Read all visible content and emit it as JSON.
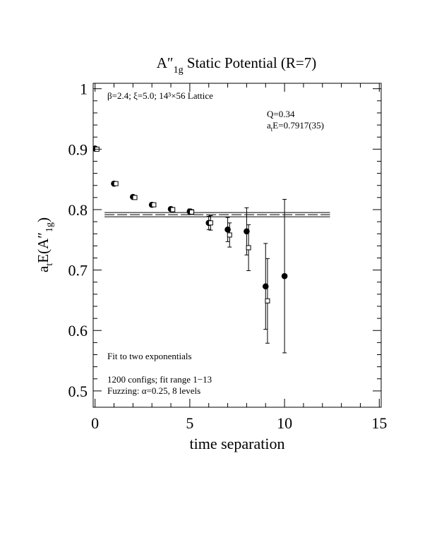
{
  "chart_data": {
    "type": "scatter",
    "title": {
      "main": "A″",
      "sub": "1g",
      "rest": " Static Potential (R=7)"
    },
    "x_label": "time separation",
    "y_label": {
      "main": "a",
      "sub1": "t",
      "mid": "E(A″",
      "sub2": "1g",
      "end": ")"
    },
    "annotations": {
      "lattice": "β=2.4; ξ=5.0; 14³×56 Lattice",
      "q": "Q=0.34",
      "energy": {
        "main": "a",
        "sub": "t",
        "rest": "E=0.7917(35)"
      },
      "fit": "Fit to two exponentials",
      "configs": "1200 configs; fit range 1−13",
      "fuzzing": "Fuzzing: α=0.25, 8 levels"
    },
    "xlim": [
      -0.1,
      15.1
    ],
    "ylim": [
      0.473,
      1.009
    ],
    "xticks": [
      0,
      5,
      10,
      15
    ],
    "xminor": [
      1,
      2,
      3,
      4,
      6,
      7,
      8,
      9,
      11,
      12,
      13,
      14
    ],
    "yticks": [
      0.5,
      0.6,
      0.7,
      0.8,
      0.9,
      1
    ],
    "yminor": [
      0.52,
      0.54,
      0.56,
      0.58,
      0.62,
      0.64,
      0.66,
      0.68,
      0.72,
      0.74,
      0.76,
      0.78,
      0.82,
      0.84,
      0.86,
      0.88,
      0.92,
      0.94,
      0.96,
      0.98
    ],
    "series": [
      {
        "marker": "circle",
        "color": "#000000",
        "x": [
          0,
          1,
          2,
          3,
          4,
          5,
          6,
          7,
          8,
          9,
          10
        ],
        "values": [
          0.901,
          0.843,
          0.821,
          0.808,
          0.801,
          0.797,
          0.778,
          0.767,
          0.764,
          0.673,
          0.69
        ],
        "errors": [
          0.002,
          0.002,
          0.002,
          0.003,
          0.003,
          0.004,
          0.011,
          0.02,
          0.039,
          0.071,
          0.127
        ]
      },
      {
        "marker": "square",
        "color": "#000000",
        "x": [
          0.1,
          1.1,
          2.1,
          3.1,
          4.1,
          5.1,
          6.1,
          7.1,
          8.1,
          9.1
        ],
        "values": [
          0.9,
          0.843,
          0.82,
          0.808,
          0.8,
          0.796,
          0.778,
          0.758,
          0.737,
          0.649
        ],
        "errors": [
          0.002,
          0.002,
          0.002,
          0.003,
          0.003,
          0.004,
          0.012,
          0.02,
          0.038,
          0.07
        ]
      }
    ],
    "fit": {
      "value": 0.7917,
      "error": 0.0035,
      "x": [
        0.5,
        12.4
      ]
    }
  }
}
